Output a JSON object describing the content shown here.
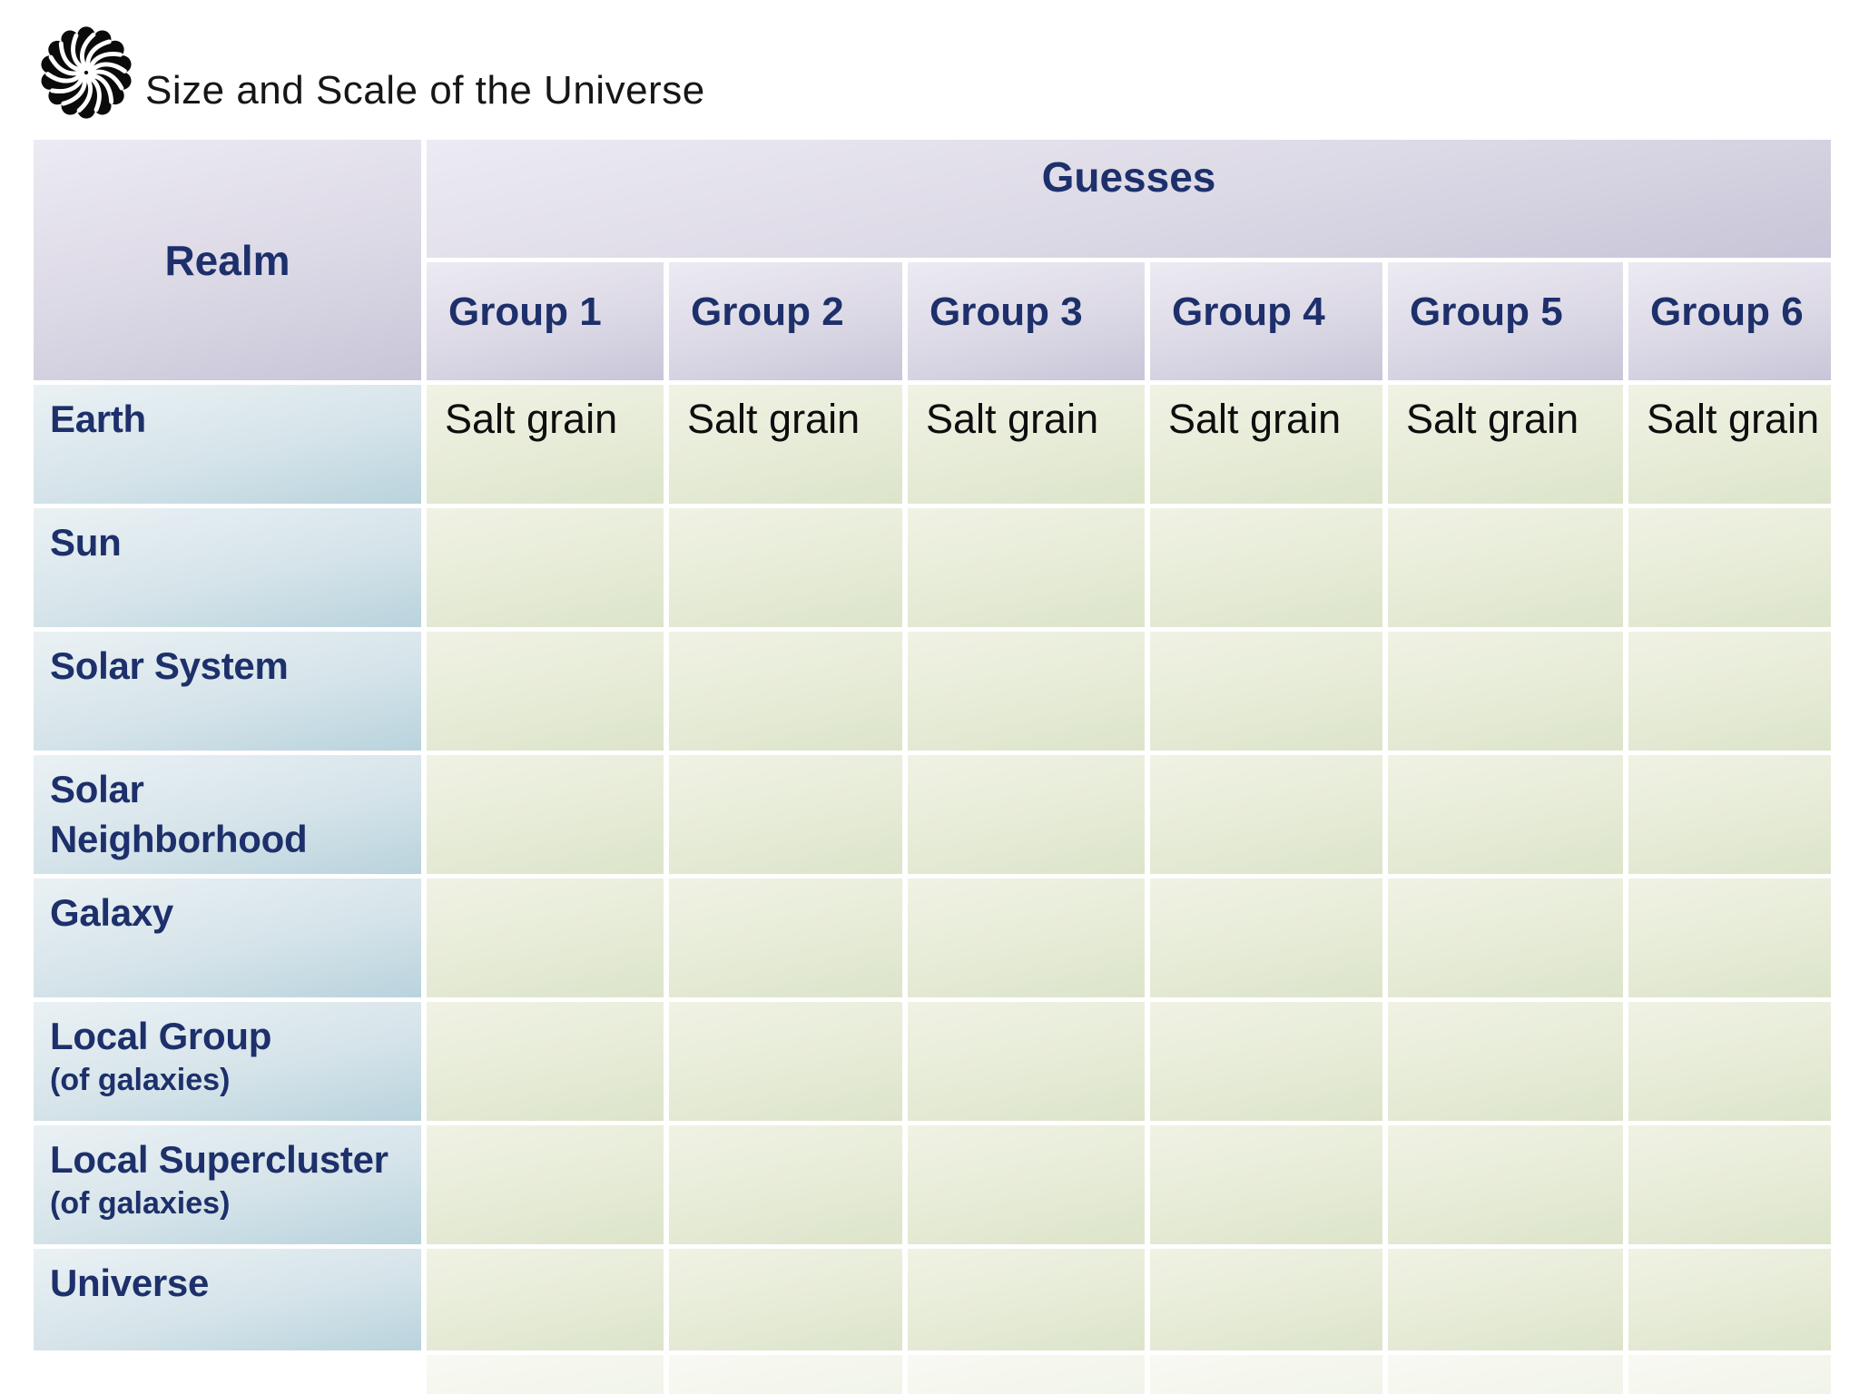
{
  "header": {
    "title": "Size and Scale of the Universe",
    "logo_icon": "spiral-pinwheel"
  },
  "table": {
    "corner_header": "Realm",
    "span_header": "Guesses",
    "group_columns": [
      "Group 1",
      "Group 2",
      "Group 3",
      "Group 4",
      "Group 5",
      "Group 6"
    ],
    "rows": [
      {
        "label": "Earth",
        "sublabel": "",
        "cells": [
          "Salt grain",
          "Salt grain",
          "Salt grain",
          "Salt grain",
          "Salt grain",
          "Salt grain"
        ]
      },
      {
        "label": "Sun",
        "sublabel": "",
        "cells": [
          "",
          "",
          "",
          "",
          "",
          ""
        ]
      },
      {
        "label": "Solar System",
        "sublabel": "",
        "cells": [
          "",
          "",
          "",
          "",
          "",
          ""
        ]
      },
      {
        "label": "Solar\nNeighborhood",
        "sublabel": "",
        "cells": [
          "",
          "",
          "",
          "",
          "",
          ""
        ]
      },
      {
        "label": "Galaxy",
        "sublabel": "",
        "cells": [
          "",
          "",
          "",
          "",
          "",
          ""
        ]
      },
      {
        "label": "Local Group",
        "sublabel": "(of galaxies)",
        "cells": [
          "",
          "",
          "",
          "",
          "",
          ""
        ]
      },
      {
        "label": "Local Supercluster",
        "sublabel": "(of galaxies)",
        "cells": [
          "",
          "",
          "",
          "",
          "",
          ""
        ]
      },
      {
        "label": "Universe",
        "sublabel": "",
        "cells": [
          "",
          "",
          "",
          "",
          "",
          ""
        ]
      }
    ]
  },
  "colors": {
    "heading_text": "#1d306b",
    "body_text": "#0e0e0e",
    "header_cell_top": "#eceaf2",
    "header_cell_bottom": "#c8c5d8",
    "realm_cell_top": "#eaf1f4",
    "realm_cell_bottom": "#b9d3dd",
    "guess_cell_top": "#f0f2e4",
    "guess_cell_bottom": "#dce4ca"
  }
}
